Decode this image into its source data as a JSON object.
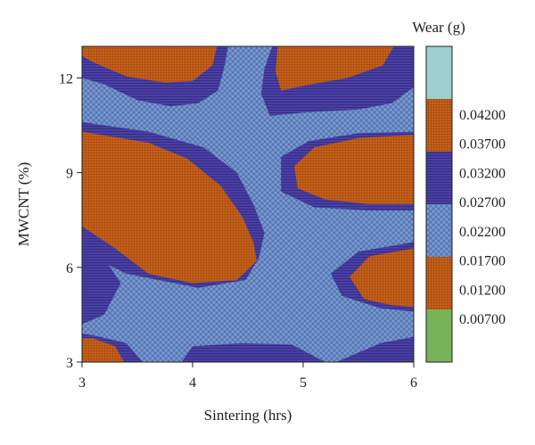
{
  "chart_data": {
    "type": "contour",
    "xlabel": "Sintering (hrs)",
    "ylabel": "MWCNT (%)",
    "xlim": [
      3,
      6
    ],
    "ylim": [
      3,
      13
    ],
    "x_ticks": [
      "3",
      "4",
      "5",
      "6"
    ],
    "y_ticks": [
      "3",
      "6",
      "9",
      "12"
    ],
    "colorbar": {
      "title": "Wear (g)",
      "levels": [
        "0.04200",
        "0.03700",
        "0.03200",
        "0.02700",
        "0.02200",
        "0.01700",
        "0.01200",
        "0.00700"
      ],
      "bands": [
        {
          "range": [
            0.042,
            0.047
          ],
          "color": "#9fcfcf",
          "pattern": "solid"
        },
        {
          "range": [
            0.037,
            0.042
          ],
          "color": "#c8621a",
          "pattern": "grid"
        },
        {
          "range": [
            0.027,
            0.037
          ],
          "color": "#4a3fa3",
          "pattern": "hatch"
        },
        {
          "range": [
            0.017,
            0.027
          ],
          "color": "#6f8fc9",
          "pattern": "crosshatch"
        },
        {
          "range": [
            0.007,
            0.017
          ],
          "color": "#c8621a",
          "pattern": "grid"
        },
        {
          "range": [
            0.002,
            0.007
          ],
          "color": "#78b35a",
          "pattern": "solid"
        }
      ]
    },
    "regions": [
      {
        "band": "0.017-0.027",
        "label": "background",
        "points": [
          [
            3,
            3
          ],
          [
            6,
            3
          ],
          [
            6,
            13
          ],
          [
            3,
            13
          ]
        ]
      },
      {
        "band": "0.027-0.037",
        "label": "top-left",
        "points": [
          [
            3,
            13
          ],
          [
            4.32,
            13
          ],
          [
            4.29,
            12.4
          ],
          [
            4.23,
            11.6
          ],
          [
            4.05,
            11.2
          ],
          [
            3.8,
            11.1
          ],
          [
            3.5,
            11.3
          ],
          [
            3.2,
            11.8
          ],
          [
            3,
            12
          ]
        ]
      },
      {
        "band": "0.037-0.042",
        "label": "top-left",
        "points": [
          [
            3,
            13
          ],
          [
            4.22,
            13
          ],
          [
            4.18,
            12.4
          ],
          [
            4.0,
            11.9
          ],
          [
            3.75,
            11.85
          ],
          [
            3.4,
            12.05
          ],
          [
            3.1,
            12.5
          ],
          [
            3,
            12.7
          ]
        ]
      },
      {
        "band": "0.027-0.037",
        "label": "top-center",
        "points": [
          [
            4.72,
            13
          ],
          [
            6,
            13
          ],
          [
            6,
            11.7
          ],
          [
            5.8,
            11.2
          ],
          [
            5.5,
            11.0
          ],
          [
            5.0,
            10.9
          ],
          [
            4.7,
            10.8
          ],
          [
            4.62,
            11.5
          ],
          [
            4.65,
            12.3
          ]
        ]
      },
      {
        "band": "0.037-0.042",
        "label": "top-center",
        "points": [
          [
            4.77,
            13
          ],
          [
            5.82,
            13
          ],
          [
            5.72,
            12.4
          ],
          [
            5.4,
            12.0
          ],
          [
            5.0,
            11.75
          ],
          [
            4.8,
            11.6
          ],
          [
            4.75,
            12.2
          ]
        ]
      },
      {
        "band": "0.027-0.037",
        "label": "middle-left",
        "points": [
          [
            3,
            10.6
          ],
          [
            3.6,
            10.3
          ],
          [
            4.1,
            9.8
          ],
          [
            4.4,
            9.0
          ],
          [
            4.55,
            8.0
          ],
          [
            4.65,
            7.1
          ],
          [
            4.6,
            6.3
          ],
          [
            4.48,
            5.6
          ],
          [
            4.05,
            5.35
          ],
          [
            3.4,
            5.8
          ],
          [
            3,
            6.5
          ]
        ]
      },
      {
        "band": "0.037-0.042",
        "label": "middle-left",
        "points": [
          [
            3,
            10.3
          ],
          [
            3.6,
            9.95
          ],
          [
            3.95,
            9.45
          ],
          [
            4.25,
            8.6
          ],
          [
            4.45,
            7.6
          ],
          [
            4.55,
            6.8
          ],
          [
            4.58,
            6.2
          ],
          [
            4.4,
            5.6
          ],
          [
            4.0,
            5.5
          ],
          [
            3.6,
            5.8
          ],
          [
            3.3,
            6.6
          ],
          [
            3,
            7.3
          ]
        ]
      },
      {
        "band": "0.007-0.017",
        "label": "green-spot",
        "points": [
          [
            3.08,
            8.95
          ],
          [
            3.55,
            8.65
          ],
          [
            3.75,
            8.6
          ],
          [
            3.68,
            8.0
          ],
          [
            3.58,
            7.95
          ],
          [
            3.45,
            8.3
          ],
          [
            3.2,
            8.75
          ]
        ]
      },
      {
        "band": "0.007-0.017",
        "label": "green-dot",
        "points": [
          [
            4.02,
            7.08
          ],
          [
            4.1,
            6.98
          ],
          [
            4.05,
            6.9
          ],
          [
            3.98,
            6.98
          ]
        ]
      },
      {
        "band": "0.027-0.037",
        "label": "middle-right",
        "points": [
          [
            6,
            10.3
          ],
          [
            5.5,
            10.25
          ],
          [
            5.05,
            10.0
          ],
          [
            4.8,
            9.5
          ],
          [
            4.8,
            8.4
          ],
          [
            5.1,
            7.9
          ],
          [
            5.6,
            7.8
          ],
          [
            6,
            7.8
          ]
        ]
      },
      {
        "band": "0.037-0.042",
        "label": "middle-right",
        "points": [
          [
            6,
            10.2
          ],
          [
            5.5,
            10.1
          ],
          [
            5.1,
            9.8
          ],
          [
            4.92,
            9.2
          ],
          [
            4.95,
            8.5
          ],
          [
            5.2,
            8.15
          ],
          [
            5.6,
            8.0
          ],
          [
            6,
            8.0
          ]
        ]
      },
      {
        "band": "0.037-0.042",
        "label": "left-edge",
        "points": [
          [
            3,
            6.9
          ],
          [
            3.12,
            6.0
          ],
          [
            3.2,
            5.2
          ],
          [
            3,
            4.6
          ]
        ]
      },
      {
        "band": "0.027-0.037",
        "label": "left-edge-outline",
        "points": [
          [
            3,
            7.2
          ],
          [
            3.2,
            6.3
          ],
          [
            3.35,
            5.5
          ],
          [
            3.2,
            4.5
          ],
          [
            3,
            4.2
          ]
        ]
      },
      {
        "band": "0.027-0.037",
        "label": "right-lower",
        "points": [
          [
            6,
            6.8
          ],
          [
            5.5,
            6.5
          ],
          [
            5.25,
            5.8
          ],
          [
            5.35,
            5.1
          ],
          [
            5.7,
            4.7
          ],
          [
            6,
            4.6
          ]
        ]
      },
      {
        "band": "0.037-0.042",
        "label": "right-lower",
        "points": [
          [
            6,
            6.6
          ],
          [
            5.6,
            6.35
          ],
          [
            5.42,
            5.7
          ],
          [
            5.55,
            5.0
          ],
          [
            5.8,
            4.8
          ],
          [
            6,
            4.75
          ]
        ]
      },
      {
        "band": "0.027-0.037",
        "label": "bottom-left",
        "points": [
          [
            3,
            3
          ],
          [
            3.55,
            3
          ],
          [
            3.4,
            3.6
          ],
          [
            3.1,
            3.85
          ],
          [
            3,
            3.9
          ]
        ]
      },
      {
        "band": "0.037-0.042",
        "label": "bottom-left",
        "points": [
          [
            3,
            3
          ],
          [
            3.38,
            3
          ],
          [
            3.3,
            3.5
          ],
          [
            3.1,
            3.75
          ],
          [
            3,
            3.75
          ]
        ]
      },
      {
        "band": "0.027-0.037",
        "label": "bottom-middle",
        "points": [
          [
            3.9,
            3
          ],
          [
            5.2,
            3
          ],
          [
            4.9,
            3.55
          ],
          [
            4.45,
            3.6
          ],
          [
            4.0,
            3.5
          ]
        ]
      },
      {
        "band": "0.027-0.037",
        "label": "bottom-right",
        "points": [
          [
            5.3,
            3
          ],
          [
            6,
            3
          ],
          [
            6,
            3.8
          ],
          [
            5.7,
            3.6
          ]
        ]
      }
    ]
  }
}
